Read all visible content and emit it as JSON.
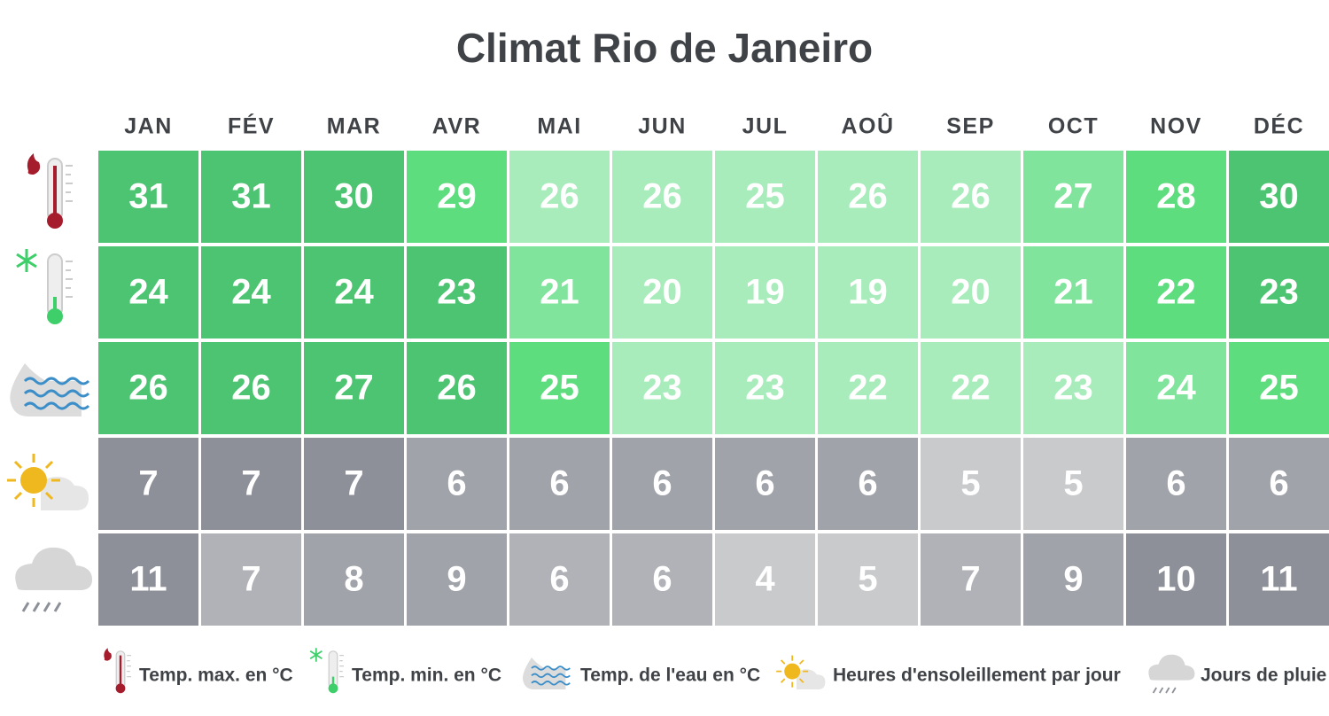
{
  "title": "Climat Rio de Janeiro",
  "months": [
    "JAN",
    "FÉV",
    "MAR",
    "AVR",
    "MAI",
    "JUN",
    "JUL",
    "AOÛ",
    "SEP",
    "OCT",
    "NOV",
    "DÉC"
  ],
  "rows": [
    {
      "label": "Temp. max. en °C",
      "values": [
        31,
        31,
        30,
        29,
        26,
        26,
        25,
        26,
        26,
        27,
        28,
        30
      ]
    },
    {
      "label": "Temp. min. en °C",
      "values": [
        24,
        24,
        24,
        23,
        21,
        20,
        19,
        19,
        20,
        21,
        22,
        23
      ]
    },
    {
      "label": "Temp. de l'eau en °C",
      "values": [
        26,
        26,
        27,
        26,
        25,
        23,
        23,
        22,
        22,
        23,
        24,
        25
      ]
    },
    {
      "label": "Heures d'ensoleillement par jour",
      "values": [
        7,
        7,
        7,
        6,
        6,
        6,
        6,
        6,
        5,
        5,
        6,
        6
      ]
    },
    {
      "label": "Jours de pluie",
      "values": [
        11,
        7,
        8,
        9,
        6,
        6,
        4,
        5,
        7,
        9,
        10,
        11
      ]
    }
  ]
}
